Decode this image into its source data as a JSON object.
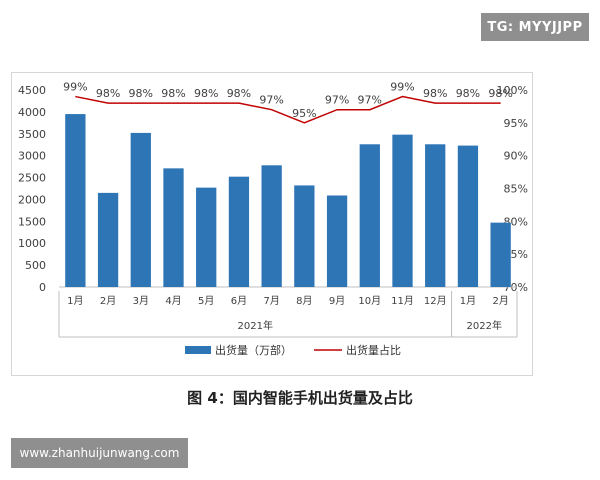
{
  "badges": {
    "tg": "TG: MYYJJPP",
    "url": "www.zhanhuijunwang.com"
  },
  "caption": "图 4：国内智能手机出货量及占比",
  "colors": {
    "bar": "#2e75b6",
    "line": "#c00000",
    "axis_text": "#404040"
  },
  "chart_data": {
    "type": "bar",
    "categories": [
      "1月",
      "2月",
      "3月",
      "4月",
      "5月",
      "6月",
      "7月",
      "8月",
      "9月",
      "10月",
      "11月",
      "12月",
      "1月",
      "2月"
    ],
    "groups": [
      {
        "label": "2021年",
        "count": 12
      },
      {
        "label": "2022年",
        "count": 2
      }
    ],
    "series": [
      {
        "name": "出货量（万部）",
        "type": "bar",
        "axis": "left",
        "values": [
          3950,
          2150,
          3520,
          2710,
          2270,
          2520,
          2780,
          2320,
          2090,
          3260,
          3480,
          3260,
          3230,
          1470
        ]
      },
      {
        "name": "出货量占比",
        "type": "line",
        "axis": "right",
        "values": [
          99,
          98,
          98,
          98,
          98,
          98,
          97,
          95,
          97,
          97,
          99,
          98,
          98,
          98
        ],
        "labels": [
          "99%",
          "98%",
          "98%",
          "98%",
          "98%",
          "98%",
          "97%",
          "95%",
          "97%",
          "97%",
          "99%",
          "98%",
          "98%",
          "98%"
        ]
      }
    ],
    "y_left": {
      "ticks": [
        "0",
        "500",
        "1000",
        "1500",
        "2000",
        "2500",
        "3000",
        "3500",
        "4000",
        "4500"
      ],
      "ylim": [
        0,
        4500
      ]
    },
    "y_right": {
      "ticks": [
        "70%",
        "75%",
        "80%",
        "85%",
        "90%",
        "95%",
        "100%"
      ],
      "ylim": [
        70,
        100
      ]
    },
    "legend_position": "bottom"
  }
}
